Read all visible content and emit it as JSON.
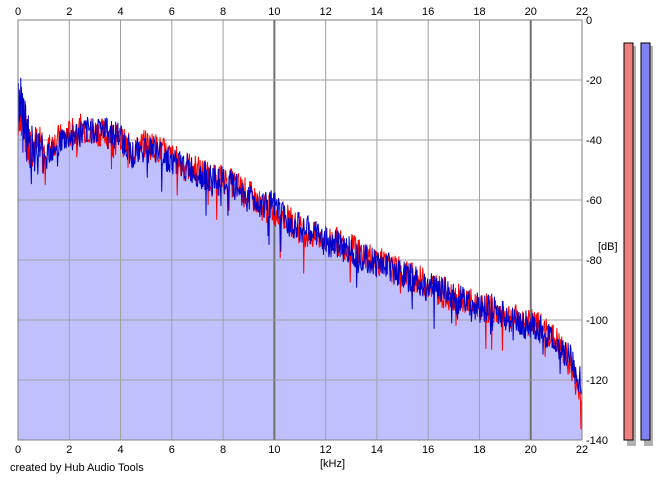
{
  "footer_text": "created by Hub Audio Tools",
  "chart_data": {
    "type": "line",
    "xlabel": "[kHz]",
    "ylabel": "[dB]",
    "xlim": [
      0,
      22
    ],
    "ylim": [
      -140,
      0
    ],
    "x_ticks": [
      0,
      2,
      4,
      6,
      8,
      10,
      12,
      14,
      16,
      18,
      20,
      22
    ],
    "y_ticks": [
      0,
      -20,
      -40,
      -60,
      -80,
      -100,
      -120,
      -140
    ],
    "grid": true,
    "fill_color": "#c0c0ff",
    "series": [
      {
        "color": "#ff0000",
        "x": [
          0,
          0.1,
          0.3,
          0.5,
          1,
          1.5,
          2,
          2.5,
          3,
          3.5,
          4,
          4.5,
          5,
          5.5,
          6,
          6.5,
          7,
          7.5,
          8,
          8.5,
          9,
          9.5,
          10,
          10.5,
          11,
          11.5,
          12,
          12.5,
          13,
          13.5,
          14,
          14.5,
          15,
          15.5,
          16,
          16.5,
          17,
          17.5,
          18,
          18.5,
          19,
          19.5,
          20,
          20.5,
          21,
          21.5,
          22
        ],
        "values": [
          -32,
          -30,
          -38,
          -41,
          -44,
          -40,
          -38,
          -36,
          -37,
          -38,
          -40,
          -44,
          -41,
          -43,
          -46,
          -48,
          -50,
          -52,
          -53,
          -55,
          -58,
          -62,
          -64,
          -66,
          -70,
          -72,
          -73,
          -74,
          -76,
          -78,
          -80,
          -83,
          -84,
          -86,
          -88,
          -90,
          -92,
          -94,
          -95,
          -97,
          -98,
          -100,
          -101,
          -103,
          -107,
          -114,
          -128
        ]
      },
      {
        "color": "#0000cc",
        "x": [
          0,
          0.1,
          0.3,
          0.5,
          1,
          1.5,
          2,
          2.5,
          3,
          3.5,
          4,
          4.5,
          5,
          5.5,
          6,
          6.5,
          7,
          7.5,
          8,
          8.5,
          9,
          9.5,
          10,
          10.5,
          11,
          11.5,
          12,
          12.5,
          13,
          13.5,
          14,
          14.5,
          15,
          15.5,
          16,
          16.5,
          17,
          17.5,
          18,
          18.5,
          19,
          19.5,
          20,
          20.5,
          21,
          21.5,
          22
        ],
        "values": [
          -28,
          -26,
          -36,
          -42,
          -45,
          -41,
          -39,
          -38,
          -36,
          -37,
          -39,
          -45,
          -42,
          -44,
          -47,
          -49,
          -51,
          -53,
          -54,
          -56,
          -59,
          -61,
          -62,
          -67,
          -69,
          -71,
          -74,
          -75,
          -77,
          -79,
          -81,
          -82,
          -85,
          -87,
          -89,
          -89,
          -93,
          -93,
          -96,
          -96,
          -99,
          -101,
          -102,
          -104,
          -108,
          -112,
          -122
        ]
      }
    ],
    "level_meters": [
      {
        "channel": "left",
        "color": "#f08080"
      },
      {
        "channel": "right",
        "color": "#8080f0"
      }
    ]
  }
}
